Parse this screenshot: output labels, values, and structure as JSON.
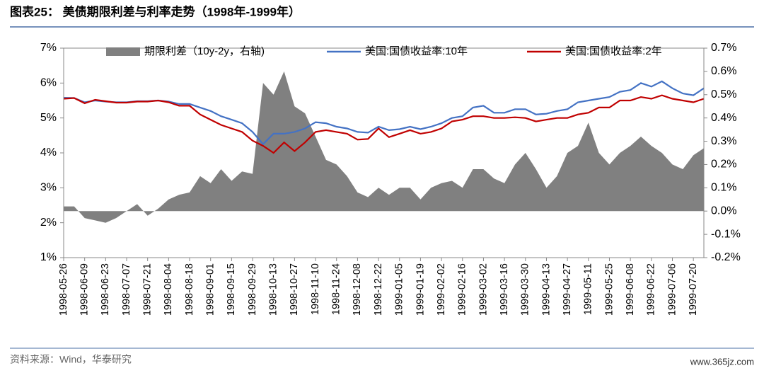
{
  "title": "图表25： 美债期限利差与利率走势（1998年-1999年）",
  "source": "资料来源：Wind，华泰研究",
  "watermark": "www.365jz.com",
  "chart_data": {
    "type": "line",
    "categories": [
      "1998-05-26",
      null,
      "1998-06-09",
      null,
      "1998-06-23",
      null,
      "1998-07-07",
      null,
      "1998-07-21",
      null,
      "1998-08-04",
      null,
      "1998-08-18",
      null,
      "1998-09-01",
      null,
      "1998-09-15",
      null,
      "1998-09-29",
      null,
      "1998-10-13",
      null,
      "1998-10-27",
      null,
      "1998-11-10",
      null,
      "1998-11-24",
      null,
      "1998-12-08",
      null,
      "1998-12-22",
      null,
      "1999-01-05",
      null,
      "1999-01-19",
      null,
      "1999-02-02",
      null,
      "1999-02-16",
      null,
      "1999-03-02",
      null,
      "1999-03-16",
      null,
      "1999-03-30",
      null,
      "1999-04-13",
      null,
      "1999-04-27",
      null,
      "1999-05-11",
      null,
      "1999-05-25",
      null,
      "1999-06-08",
      null,
      "1999-06-22",
      null,
      "1999-07-06",
      null,
      "1999-07-20",
      null
    ],
    "series": [
      {
        "name": "期限利差（10y-2y，右轴)",
        "type": "area",
        "axis": "y2",
        "color": "#808080",
        "values": [
          0.02,
          0.02,
          -0.03,
          -0.04,
          -0.05,
          -0.03,
          0.0,
          0.03,
          -0.02,
          0.01,
          0.05,
          0.07,
          0.08,
          0.15,
          0.12,
          0.18,
          0.13,
          0.17,
          0.16,
          0.55,
          0.5,
          0.6,
          0.45,
          0.42,
          0.32,
          0.22,
          0.2,
          0.15,
          0.08,
          0.06,
          0.1,
          0.07,
          0.1,
          0.1,
          0.05,
          0.1,
          0.12,
          0.13,
          0.1,
          0.18,
          0.18,
          0.14,
          0.12,
          0.2,
          0.25,
          0.18,
          0.1,
          0.15,
          0.25,
          0.28,
          0.38,
          0.25,
          0.2,
          0.25,
          0.28,
          0.32,
          0.28,
          0.25,
          0.2,
          0.18,
          0.24,
          0.27
        ]
      },
      {
        "name": "美国:国债收益率:10年",
        "color": "#4472c4",
        "values": [
          5.58,
          5.57,
          5.45,
          5.5,
          5.47,
          5.45,
          5.45,
          5.48,
          5.48,
          5.5,
          5.47,
          5.4,
          5.4,
          5.3,
          5.2,
          5.05,
          4.95,
          4.85,
          4.6,
          4.25,
          4.55,
          4.55,
          4.6,
          4.7,
          4.88,
          4.85,
          4.75,
          4.7,
          4.6,
          4.58,
          4.75,
          4.65,
          4.68,
          4.75,
          4.68,
          4.75,
          4.85,
          5.0,
          5.05,
          5.3,
          5.35,
          5.15,
          5.15,
          5.25,
          5.25,
          5.1,
          5.12,
          5.2,
          5.25,
          5.45,
          5.5,
          5.55,
          5.6,
          5.75,
          5.8,
          6.0,
          5.9,
          6.05,
          5.85,
          5.7,
          5.65,
          5.85
        ]
      },
      {
        "name": "美国:国债收益率:2年",
        "color": "#c00000",
        "values": [
          5.55,
          5.57,
          5.42,
          5.52,
          5.48,
          5.44,
          5.44,
          5.47,
          5.47,
          5.5,
          5.45,
          5.35,
          5.35,
          5.1,
          4.95,
          4.8,
          4.7,
          4.6,
          4.35,
          4.2,
          4.0,
          4.3,
          4.05,
          4.3,
          4.6,
          4.65,
          4.6,
          4.55,
          4.38,
          4.4,
          4.7,
          4.45,
          4.55,
          4.65,
          4.55,
          4.6,
          4.7,
          4.9,
          4.95,
          5.05,
          5.05,
          5.0,
          5.0,
          5.02,
          5.0,
          4.9,
          4.95,
          5.0,
          5.0,
          5.1,
          5.15,
          5.3,
          5.3,
          5.5,
          5.5,
          5.6,
          5.55,
          5.65,
          5.55,
          5.5,
          5.45,
          5.55
        ]
      }
    ],
    "ylim": [
      1,
      7
    ],
    "yticks": [
      {
        "value": 1,
        "label": "1%"
      },
      {
        "value": 2,
        "label": "2%"
      },
      {
        "value": 3,
        "label": "3%"
      },
      {
        "value": 4,
        "label": "4%"
      },
      {
        "value": 5,
        "label": "5%"
      },
      {
        "value": 6,
        "label": "6%"
      },
      {
        "value": 7,
        "label": "7%"
      }
    ],
    "y2lim": [
      -0.2,
      0.7
    ],
    "y2ticks": [
      {
        "value": -0.2,
        "label": "-0.2%"
      },
      {
        "value": -0.1,
        "label": "-0.1%"
      },
      {
        "value": 0,
        "label": "0.0%"
      },
      {
        "value": 0.1,
        "label": "0.1%"
      },
      {
        "value": 0.2,
        "label": "0.2%"
      },
      {
        "value": 0.3,
        "label": "0.3%"
      },
      {
        "value": 0.4,
        "label": "0.4%"
      },
      {
        "value": 0.5,
        "label": "0.5%"
      },
      {
        "value": 0.6,
        "label": "0.6%"
      },
      {
        "value": 0.7,
        "label": "0.7%"
      }
    ]
  }
}
